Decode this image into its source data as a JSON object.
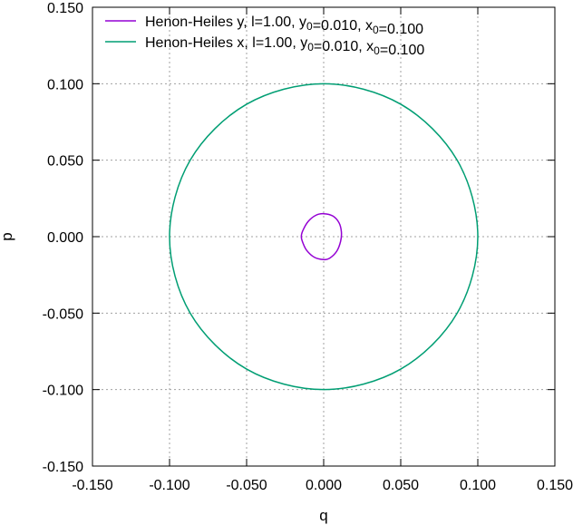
{
  "chart_data": {
    "type": "line",
    "title": "",
    "xlabel": "q",
    "ylabel": "p",
    "xlim": [
      -0.15,
      0.15
    ],
    "ylim": [
      -0.15,
      0.15
    ],
    "xticks": [
      -0.15,
      -0.1,
      -0.05,
      0.0,
      0.05,
      0.1,
      0.15
    ],
    "yticks": [
      -0.15,
      -0.1,
      -0.05,
      0.0,
      0.05,
      0.1,
      0.15
    ],
    "xtick_labels": [
      "-0.150",
      "-0.100",
      "-0.050",
      "0.000",
      "0.050",
      "0.100",
      "0.150"
    ],
    "ytick_labels": [
      "-0.150",
      "-0.100",
      "-0.050",
      "0.000",
      "0.050",
      "0.100",
      "0.150"
    ],
    "grid": true,
    "legend_position": "top-left",
    "series": [
      {
        "name": "Henon-Heiles y, l=1.00, y0=0.010, x0=0.100",
        "legend": {
          "prefix": "Henon-Heiles y, l=1.00, y",
          "sub1": "0",
          "mid": "=0.010, x",
          "sub2": "0",
          "suffix": "=0.100"
        },
        "color": "#9400d3",
        "x": [
          0.0,
          0.006,
          0.01,
          0.0115,
          0.011,
          0.0085,
          0.004,
          0.0,
          -0.006,
          -0.011,
          -0.0135,
          -0.0145,
          -0.0135,
          -0.01,
          -0.005,
          0.0
        ],
        "y": [
          0.015,
          0.0135,
          0.009,
          0.003,
          -0.003,
          -0.0095,
          -0.014,
          -0.015,
          -0.0135,
          -0.009,
          -0.004,
          0.0,
          0.004,
          0.01,
          0.014,
          0.015
        ]
      },
      {
        "name": "Henon-Heiles x, l=1.00, y0=0.010, x0=0.100",
        "legend": {
          "prefix": "Henon-Heiles x, l=1.00, y",
          "sub1": "0",
          "mid": "=0.010, x",
          "sub2": "0",
          "suffix": "=0.100"
        },
        "color": "#009e73",
        "x": [
          0.1,
          0.0866,
          0.05,
          0.0,
          -0.05,
          -0.0866,
          -0.1,
          -0.0866,
          -0.05,
          0.0,
          0.05,
          0.0866,
          0.1
        ],
        "y": [
          0.0,
          0.05,
          0.0866,
          0.1,
          0.0866,
          0.05,
          0.0,
          -0.05,
          -0.0866,
          -0.1,
          -0.0866,
          -0.05,
          0.0
        ]
      }
    ]
  }
}
